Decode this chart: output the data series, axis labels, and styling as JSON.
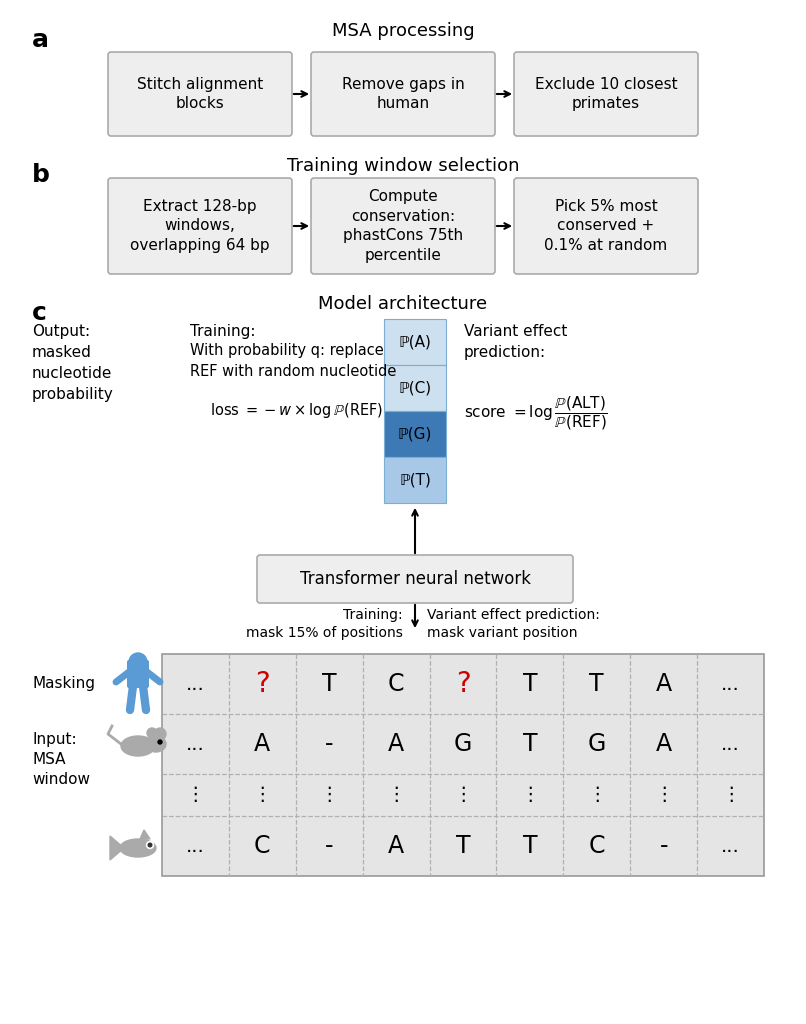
{
  "bg_color": "#ffffff",
  "panel_a_title": "MSA processing",
  "panel_b_title": "Training window selection",
  "panel_c_title": "Model architecture",
  "panel_a_boxes": [
    "Stitch alignment\nblocks",
    "Remove gaps in\nhuman",
    "Exclude 10 closest\nprimates"
  ],
  "panel_b_boxes": [
    "Extract 128-bp\nwindows,\noverlapping 64 bp",
    "Compute\nconservation:\nphastCons 75th\npercentile",
    "Pick 5% most\nconserved +\n0.1% at random"
  ],
  "box_face_color": "#eeeeee",
  "box_edge_color": "#aaaaaa",
  "transformer_box_text": "Transformer neural network",
  "prob_labels": [
    "ℙ(A)",
    "ℙ(C)",
    "ℙ(G)",
    "ℙ(T)"
  ],
  "prob_colors": [
    "#cce0f0",
    "#cce0f0",
    "#3d7ab5",
    "#a8c8e8"
  ],
  "output_text": "Output:\nmasked\nnucleotide\nprobability",
  "training_text": "Training:",
  "training_detail": "With probability q: replace\nREF with random nucleotide",
  "variant_effect_title": "Variant effect\nprediction:",
  "masking_label": "Masking",
  "input_label": "Input:\nMSA\nwindow",
  "training_mask_label": "Training:\nmask 15% of positions",
  "variant_mask_label": "Variant effect prediction:\nmask variant position",
  "grid_row1": [
    "...",
    "?",
    "T",
    "C",
    "?",
    "T",
    "T",
    "A",
    "..."
  ],
  "grid_row2": [
    "...",
    "A",
    "-",
    "A",
    "G",
    "T",
    "G",
    "A",
    "..."
  ],
  "grid_row3": [
    "⋮",
    "⋮",
    "⋮",
    "⋮",
    "⋮",
    "⋮",
    "⋮",
    "⋮",
    "⋮"
  ],
  "grid_row4": [
    "...",
    "C",
    "-",
    "A",
    "T",
    "T",
    "C",
    "-",
    "..."
  ],
  "red_color": "#cc0000",
  "blue_human_color": "#5b9bd5",
  "gray_animal_color": "#aaaaaa",
  "grid_bg": "#e5e5e5",
  "stack_border_color": "#7aafd4"
}
